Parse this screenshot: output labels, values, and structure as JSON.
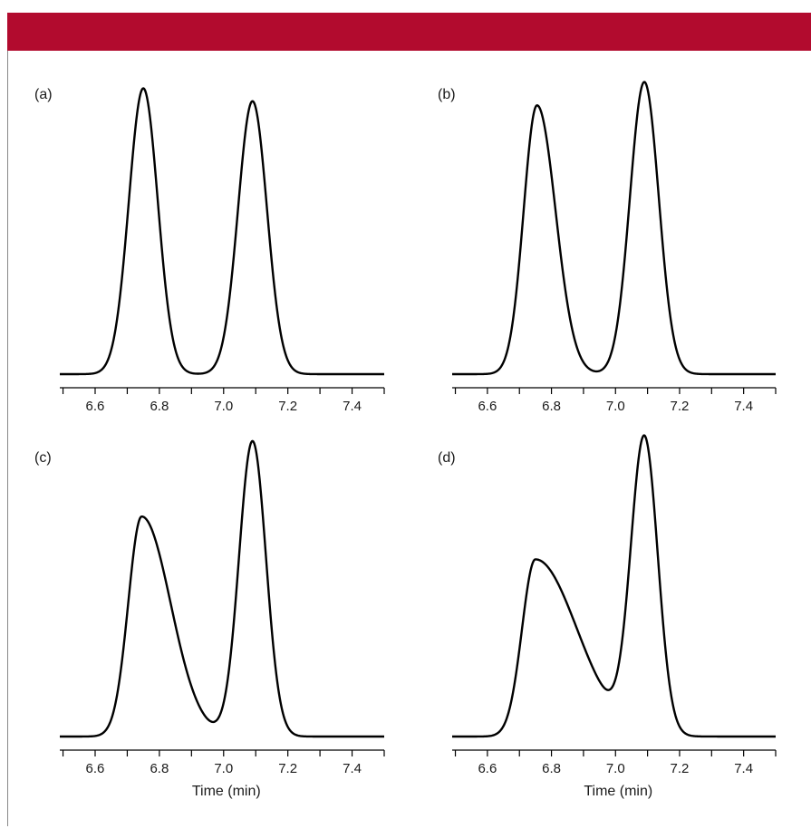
{
  "colors": {
    "banner": "#b20b2e",
    "trace": "#000000",
    "axis": "#000000"
  },
  "chart_data": [
    {
      "type": "line",
      "panel_label": "(a)",
      "xlabel": "",
      "xlim": [
        6.49,
        7.5
      ],
      "xticks": [
        6.6,
        6.8,
        7.0,
        7.2,
        7.4
      ],
      "xtick_labels": [
        "6.6",
        "6.8",
        "7.0",
        "7.2",
        "7.4"
      ],
      "peaks": [
        {
          "center": 6.75,
          "height": 1.0,
          "sigma_left": 0.045,
          "sigma_right": 0.045
        },
        {
          "center": 7.09,
          "height": 0.955,
          "sigma_left": 0.045,
          "sigma_right": 0.045
        }
      ],
      "ylim": [
        0,
        1.03
      ]
    },
    {
      "type": "line",
      "panel_label": "(b)",
      "xlabel": "",
      "xlim": [
        6.49,
        7.5
      ],
      "xticks": [
        6.6,
        6.8,
        7.0,
        7.2,
        7.4
      ],
      "xtick_labels": [
        "6.6",
        "6.8",
        "7.0",
        "7.2",
        "7.4"
      ],
      "peaks": [
        {
          "center": 6.755,
          "height": 0.92,
          "sigma_left": 0.042,
          "sigma_right": 0.058
        },
        {
          "center": 7.09,
          "height": 1.0,
          "sigma_left": 0.045,
          "sigma_right": 0.045
        }
      ],
      "ylim": [
        0,
        1.02
      ]
    },
    {
      "type": "line",
      "panel_label": "(c)",
      "xlabel": "Time (min)",
      "xlim": [
        6.49,
        7.5
      ],
      "xticks": [
        6.6,
        6.8,
        7.0,
        7.2,
        7.4
      ],
      "xtick_labels": [
        "6.6",
        "6.8",
        "7.0",
        "7.2",
        "7.4"
      ],
      "peaks": [
        {
          "center": 6.745,
          "height": 0.745,
          "sigma_left": 0.042,
          "sigma_right": 0.09
        },
        {
          "center": 7.09,
          "height": 1.0,
          "sigma_left": 0.042,
          "sigma_right": 0.042
        }
      ],
      "ylim": [
        0,
        1.0
      ]
    },
    {
      "type": "line",
      "panel_label": "(d)",
      "xlabel": "Time (min)",
      "xlim": [
        6.49,
        7.5
      ],
      "xticks": [
        6.6,
        6.8,
        7.0,
        7.2,
        7.4
      ],
      "xtick_labels": [
        "6.6",
        "6.8",
        "7.0",
        "7.2",
        "7.4"
      ],
      "peaks": [
        {
          "center": 6.75,
          "height": 0.6,
          "sigma_left": 0.042,
          "sigma_right": 0.13
        },
        {
          "center": 7.09,
          "height": 1.0,
          "sigma_left": 0.042,
          "sigma_right": 0.042
        }
      ],
      "ylim": [
        0,
        1.0
      ]
    }
  ]
}
